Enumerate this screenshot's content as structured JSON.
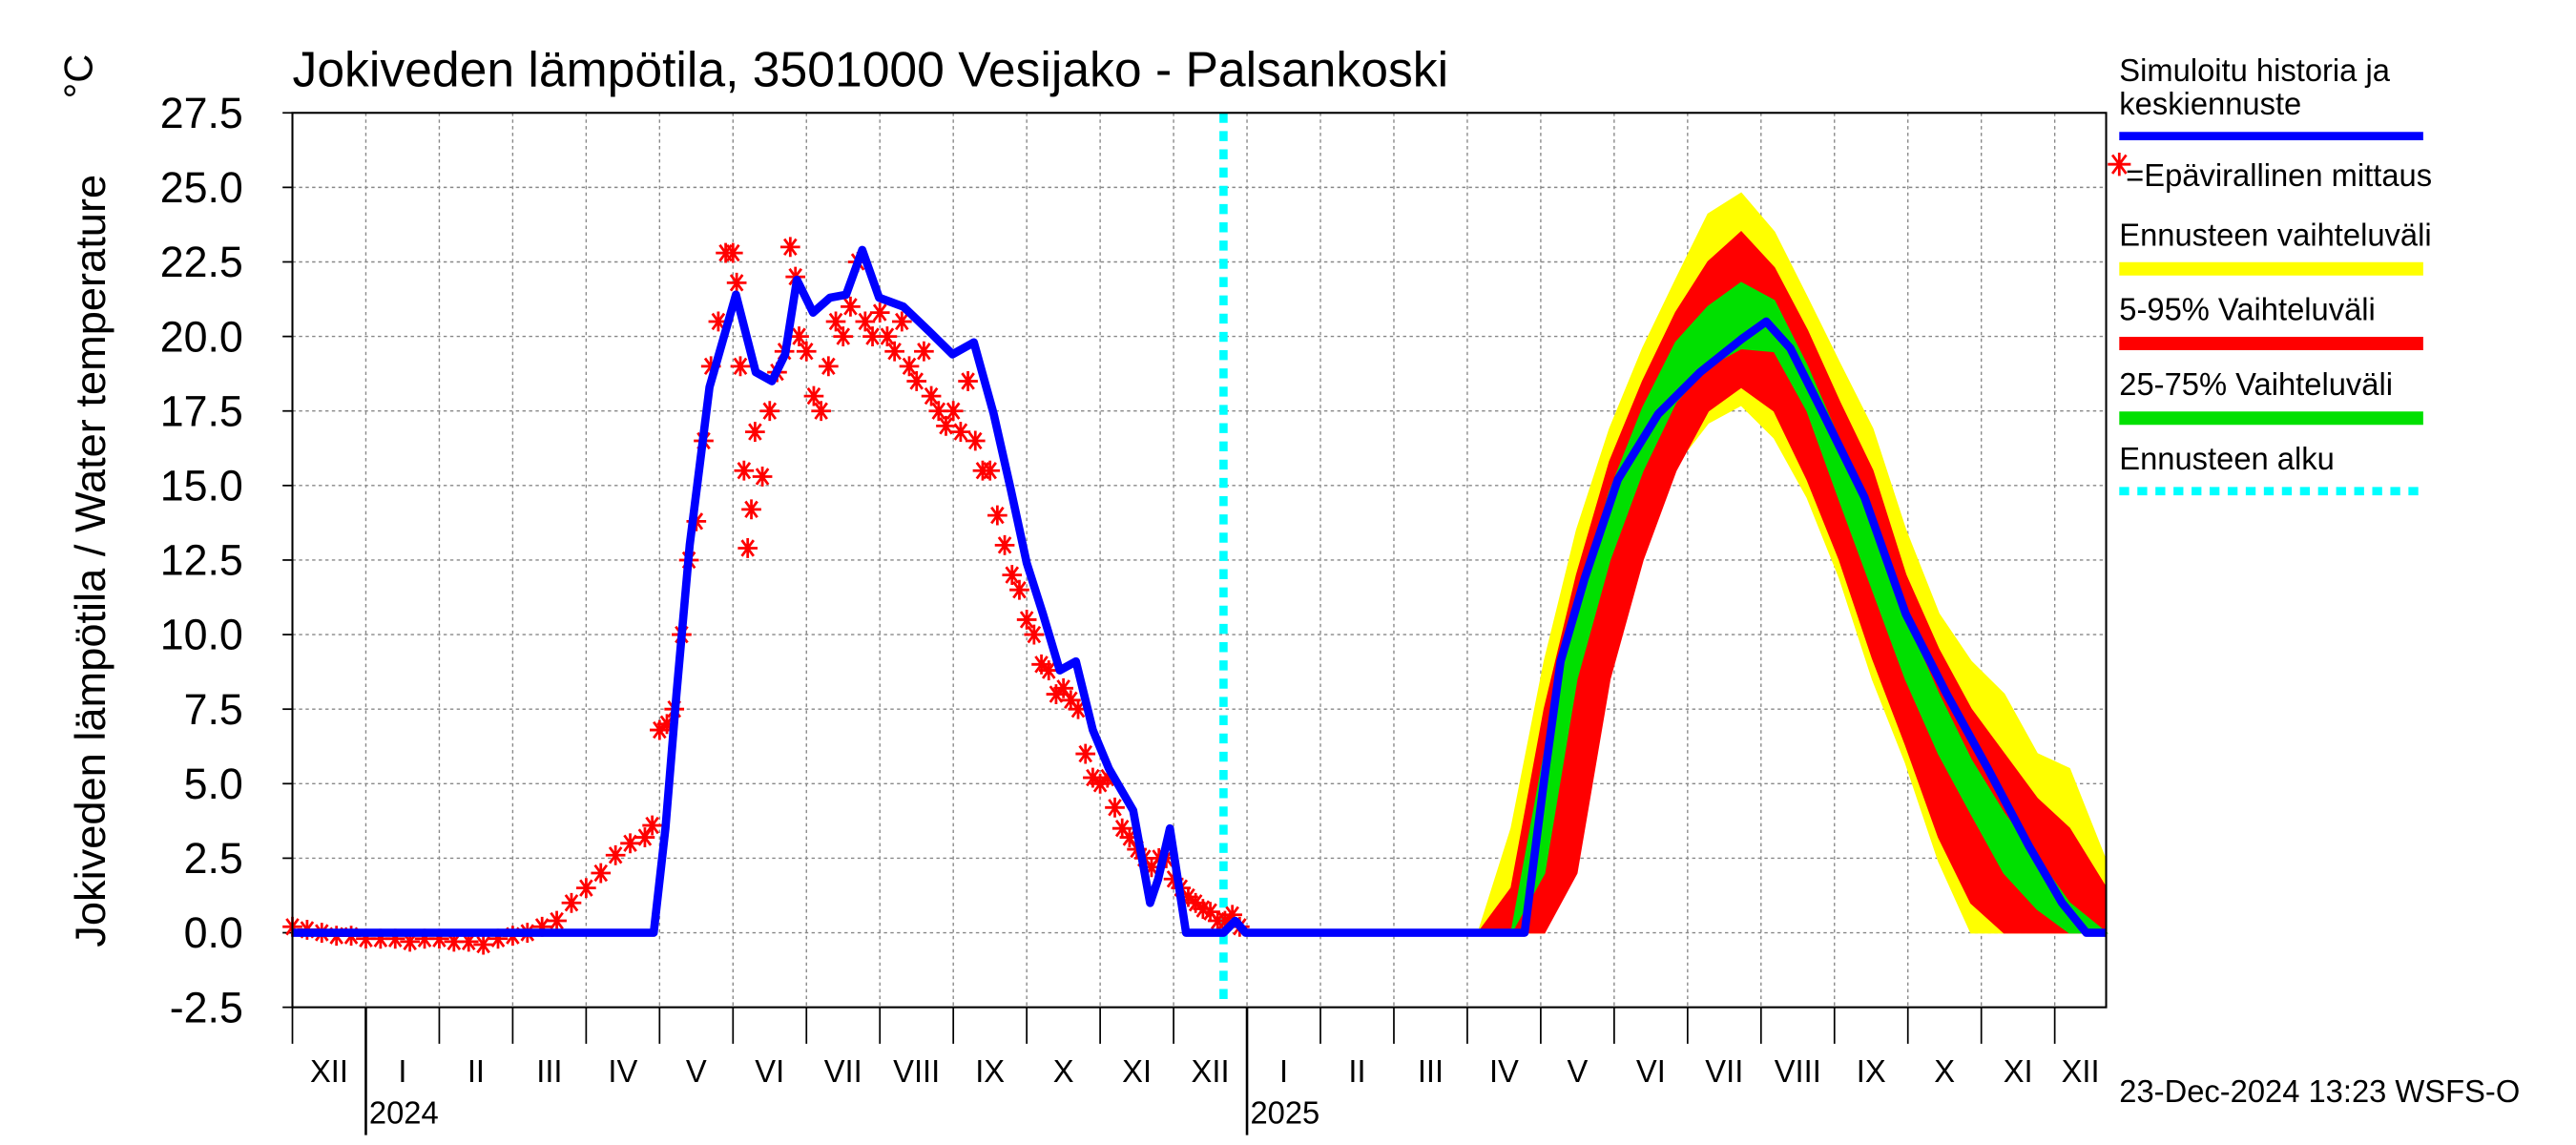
{
  "chart_data": {
    "type": "line",
    "title": "Jokiveden lämpötila, 3501000 Vesijako - Palsankoski",
    "y_label": "Jokiveden lämpötila / Water temperature",
    "unit_label": "°C",
    "footer": "23-Dec-2024 13:23 WSFS-O",
    "xlim": [
      0,
      24.7
    ],
    "ylim": [
      -2.5,
      27.5
    ],
    "grid": true,
    "yticks": [
      -2.5,
      {
        "value": 0,
        "label": "0.0"
      },
      2.5,
      {
        "value": 5,
        "label": "5.0"
      },
      7.5,
      {
        "value": 10,
        "label": "10.0"
      },
      12.5,
      {
        "value": 15,
        "label": "15.0"
      },
      17.5,
      {
        "value": 20,
        "label": "20.0"
      },
      22.5,
      {
        "value": 25,
        "label": "25.0"
      },
      27.5
    ],
    "xticks": [
      {
        "value": 0,
        "label": "XII"
      },
      {
        "value": 1,
        "label": "I"
      },
      {
        "value": 2,
        "label": "II"
      },
      {
        "value": 3,
        "label": "III"
      },
      {
        "value": 4,
        "label": "IV"
      },
      {
        "value": 5,
        "label": "V"
      },
      {
        "value": 6,
        "label": "VI"
      },
      {
        "value": 7,
        "label": "VII"
      },
      {
        "value": 8,
        "label": "VIII"
      },
      {
        "value": 9,
        "label": "IX"
      },
      {
        "value": 10,
        "label": "X"
      },
      {
        "value": 11,
        "label": "XI"
      },
      {
        "value": 12,
        "label": "XII"
      },
      {
        "value": 13,
        "label": "I"
      },
      {
        "value": 14,
        "label": "II"
      },
      {
        "value": 15,
        "label": "III"
      },
      {
        "value": 16,
        "label": "IV"
      },
      {
        "value": 17,
        "label": "V"
      },
      {
        "value": 18,
        "label": "VI"
      },
      {
        "value": 19,
        "label": "VII"
      },
      {
        "value": 20,
        "label": "VIII"
      },
      {
        "value": 21,
        "label": "IX"
      },
      {
        "value": 22,
        "label": "X"
      },
      {
        "value": 23,
        "label": "XI"
      },
      {
        "value": 24,
        "label": "XII"
      }
    ],
    "year_ticks": [
      {
        "value": 1,
        "label": "2024"
      },
      {
        "value": 13,
        "label": "2025"
      }
    ],
    "series": [
      {
        "name": "Simuloitu historia ja keskiennuste",
        "color": "#0000ff",
        "x": [
          0,
          4.92,
          5.08,
          5.23,
          5.41,
          5.68,
          6.04,
          6.31,
          6.53,
          6.71,
          6.87,
          7.09,
          7.32,
          7.54,
          7.76,
          7.99,
          8.32,
          8.66,
          8.99,
          9.28,
          9.55,
          9.78,
          10.0,
          10.22,
          10.45,
          10.67,
          10.9,
          11.12,
          11.45,
          11.68,
          11.79,
          11.95,
          12.17,
          12.68,
          12.84,
          12.98,
          16.78,
          17.05,
          17.27,
          17.6,
          18.05,
          18.6,
          19.17,
          19.73,
          20.07,
          20.4,
          20.85,
          21.41,
          21.97,
          22.53,
          23.09,
          23.65,
          24.1,
          24.43,
          24.7
        ],
        "values": [
          0,
          0,
          3.5,
          8,
          13,
          18.3,
          21.4,
          18.8,
          18.5,
          19.4,
          21.9,
          20.8,
          21.3,
          21.4,
          22.9,
          21.3,
          21,
          20.2,
          19.4,
          19.8,
          17.4,
          14.9,
          12.4,
          10.7,
          8.8,
          9.1,
          6.8,
          5.5,
          4.1,
          1,
          1.8,
          3.5,
          0,
          0,
          0.4,
          0,
          0,
          5.2,
          9.1,
          11.9,
          15.2,
          17.4,
          18.8,
          19.9,
          20.5,
          19.6,
          17.4,
          14.6,
          10.7,
          8,
          5.5,
          2.9,
          1,
          0,
          0
        ]
      }
    ],
    "measurements": {
      "name": "=Epävirallinen mittaus",
      "color": "#ff0000",
      "marker": "asterisk",
      "x": [
        0,
        0.2,
        0.4,
        0.6,
        0.8,
        1,
        1.2,
        1.4,
        1.6,
        1.8,
        2,
        2.2,
        2.4,
        2.6,
        2.8,
        3,
        3.2,
        3.4,
        3.6,
        3.8,
        4,
        4.2,
        4.4,
        4.6,
        4.8,
        4.9,
        5,
        5.1,
        5.2,
        5.3,
        5.4,
        5.5,
        5.6,
        5.7,
        5.8,
        5.9,
        6,
        6.05,
        6.1,
        6.15,
        6.2,
        6.25,
        6.3,
        6.4,
        6.5,
        6.6,
        6.7,
        6.78,
        6.85,
        6.9,
        7,
        7.1,
        7.2,
        7.3,
        7.4,
        7.5,
        7.6,
        7.7,
        7.8,
        7.9,
        8,
        8.1,
        8.2,
        8.3,
        8.4,
        8.5,
        8.6,
        8.7,
        8.8,
        8.9,
        9,
        9.1,
        9.2,
        9.3,
        9.4,
        9.5,
        9.6,
        9.7,
        9.8,
        9.9,
        10,
        10.1,
        10.2,
        10.3,
        10.4,
        10.5,
        10.6,
        10.7,
        10.8,
        10.9,
        11,
        11.1,
        11.2,
        11.3,
        11.4,
        11.5,
        11.6,
        11.7,
        11.8,
        11.9,
        12,
        12.1,
        12.2,
        12.3,
        12.4,
        12.5,
        12.6,
        12.7,
        12.8,
        12.9
      ],
      "values": [
        0.2,
        0.1,
        0,
        -0.1,
        -0.1,
        -0.2,
        -0.2,
        -0.2,
        -0.3,
        -0.2,
        -0.2,
        -0.3,
        -0.3,
        -0.4,
        -0.2,
        -0.1,
        0,
        0.2,
        0.4,
        1,
        1.5,
        2,
        2.6,
        3,
        3.2,
        3.6,
        6.8,
        7,
        7.5,
        10,
        12.5,
        13.8,
        16.5,
        19,
        20.5,
        22.8,
        22.8,
        21.8,
        19,
        15.5,
        12.9,
        14.2,
        16.8,
        15.3,
        17.5,
        18.8,
        19.5,
        23,
        22,
        20,
        19.5,
        18,
        17.5,
        19,
        20.5,
        20,
        21,
        22.5,
        20.5,
        20,
        20.8,
        20,
        19.5,
        20.5,
        19,
        18.5,
        19.5,
        18,
        17.5,
        17,
        17.5,
        16.8,
        18.5,
        16.5,
        15.5,
        15.5,
        14,
        13,
        12,
        11.5,
        10.5,
        10,
        9,
        8.8,
        8,
        8.2,
        7.8,
        7.5,
        6,
        5.2,
        5,
        5.2,
        4.2,
        3.5,
        3.2,
        2.8,
        2.5,
        2.2,
        2.5,
        2.5,
        1.8,
        1.5,
        1.2,
        1,
        0.8,
        0.7,
        0.4,
        0.4,
        0.6,
        0.2
      ]
    },
    "band_x": [
      16.15,
      16.6,
      17.05,
      17.49,
      17.94,
      18.39,
      18.84,
      19.28,
      19.73,
      20.18,
      20.63,
      21.07,
      21.52,
      21.97,
      22.42,
      22.86,
      23.31,
      23.76,
      24.2,
      24.7
    ],
    "bands": [
      {
        "name": "Ennusteen vaihteluväli",
        "color": "#ffff00",
        "low": [
          0,
          0,
          0,
          4.6,
          9.1,
          13,
          15.7,
          17.1,
          17.7,
          16.6,
          14.6,
          11.9,
          8.5,
          5.7,
          2.4,
          0,
          0,
          0,
          0,
          0
        ],
        "high": [
          0,
          3.5,
          9.1,
          13.5,
          16.9,
          19.6,
          21.9,
          24.1,
          24.8,
          23.5,
          21.3,
          19.1,
          16.9,
          13.5,
          10.7,
          9.1,
          8,
          6,
          5.5,
          2.4
        ]
      },
      {
        "name": "5-95% Vaihteluväli",
        "color": "#ff0000",
        "low": [
          0,
          0,
          0,
          2,
          8.5,
          12.5,
          15.5,
          17.5,
          18.3,
          17.5,
          15.2,
          12.5,
          9.2,
          6.3,
          3.2,
          1,
          0,
          0,
          0,
          0
        ],
        "high": [
          0,
          1.5,
          7.5,
          12,
          15.8,
          18.5,
          20.8,
          22.5,
          23.5,
          22.3,
          20.2,
          17.8,
          15.5,
          12,
          9.5,
          7.5,
          6,
          4.5,
          3.5,
          1.5
        ]
      },
      {
        "name": "25-75% Vaihteluväli",
        "color": "#00e000",
        "low": [
          0,
          0,
          2,
          8.5,
          12.5,
          15.5,
          17.8,
          19,
          19.6,
          19.5,
          17.5,
          14.5,
          11.5,
          8.5,
          6,
          4,
          2,
          0.8,
          0,
          0
        ],
        "high": [
          0,
          0,
          6,
          11,
          14.8,
          17.6,
          19.8,
          21,
          21.8,
          21.2,
          19,
          16.5,
          13.5,
          10.5,
          8,
          5.8,
          4,
          2.5,
          1,
          0
        ]
      }
    ],
    "forecast_start": {
      "name": "Ennusteen alku",
      "color": "#00ffff",
      "x": 12.68
    }
  }
}
